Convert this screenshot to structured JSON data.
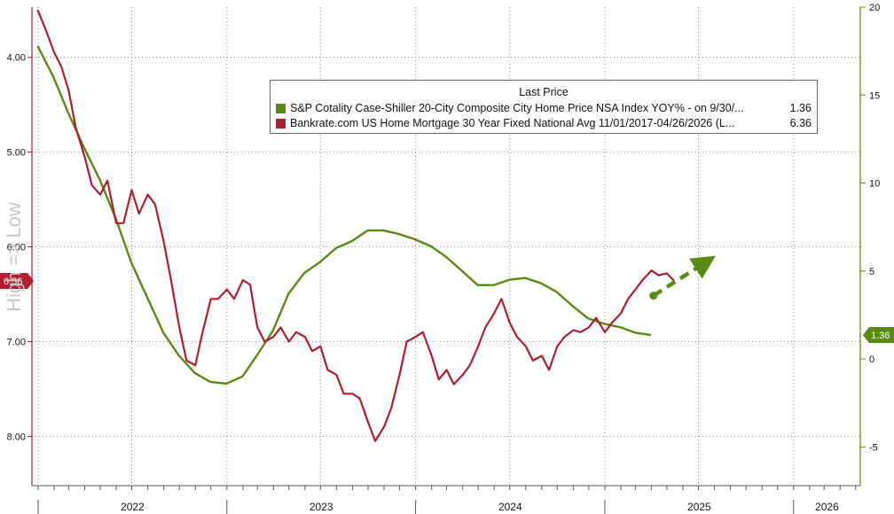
{
  "chart_data": {
    "type": "line",
    "legend": {
      "title": "Last Price",
      "position": "top-center",
      "entries": [
        {
          "label": "S&P Cotality Case-Shiller 20-City Composite City Home Price NSA Index YOY% -  on 9/30/...",
          "value": "1.36",
          "color": "#5a8a12"
        },
        {
          "label": "Bankrate.com US Home Mortgage 30 Year Fixed National Avg 11/01/2017-04/26/2026   (L...",
          "value": "6.36",
          "color": "#b01e2f"
        }
      ]
    },
    "x_axis": {
      "type": "date",
      "range": [
        "2021-12-20",
        "2026-05-10"
      ],
      "tick_labels": [
        "2022",
        "2023",
        "2024",
        "2025",
        "2026"
      ]
    },
    "left_axis": {
      "inverted": true,
      "range": [
        3.47,
        8.52
      ],
      "ticks": [
        "4.00",
        "5.00",
        "6.00",
        "7.00",
        "8.00"
      ],
      "label": "High => Low",
      "current_value_label": "6.36"
    },
    "right_axis": {
      "range": [
        -7.2,
        20
      ],
      "ticks": [
        "20",
        "15",
        "10",
        "5",
        "0",
        "-5"
      ],
      "current_value_label": "1.36"
    },
    "grid": true,
    "series": [
      {
        "name": "S&P Cotality Case-Shiller 20-City Composite City Home Price NSA Index YOY%",
        "axis": "right",
        "color": "#5a8a12",
        "points": [
          [
            "2021-12-31",
            17.8
          ],
          [
            "2022-01-31",
            16.0
          ],
          [
            "2022-02-28",
            14.0
          ],
          [
            "2022-03-31",
            12.0
          ],
          [
            "2022-04-30",
            10.2
          ],
          [
            "2022-05-31",
            8.0
          ],
          [
            "2022-06-30",
            5.5
          ],
          [
            "2022-07-31",
            3.5
          ],
          [
            "2022-08-31",
            1.5
          ],
          [
            "2022-09-30",
            0.2
          ],
          [
            "2022-10-31",
            -0.8
          ],
          [
            "2022-11-30",
            -1.3
          ],
          [
            "2022-12-31",
            -1.4
          ],
          [
            "2023-01-31",
            -1.0
          ],
          [
            "2023-02-28",
            0.2
          ],
          [
            "2023-03-31",
            1.6
          ],
          [
            "2023-04-30",
            3.7
          ],
          [
            "2023-05-31",
            4.9
          ],
          [
            "2023-06-30",
            5.5
          ],
          [
            "2023-07-31",
            6.3
          ],
          [
            "2023-08-31",
            6.7
          ],
          [
            "2023-09-30",
            7.3
          ],
          [
            "2023-10-31",
            7.3
          ],
          [
            "2023-11-30",
            7.1
          ],
          [
            "2023-12-31",
            6.8
          ],
          [
            "2024-01-31",
            6.4
          ],
          [
            "2024-02-29",
            5.8
          ],
          [
            "2024-03-31",
            5.0
          ],
          [
            "2024-04-30",
            4.2
          ],
          [
            "2024-05-31",
            4.2
          ],
          [
            "2024-06-30",
            4.5
          ],
          [
            "2024-07-31",
            4.6
          ],
          [
            "2024-08-31",
            4.3
          ],
          [
            "2024-09-30",
            3.8
          ],
          [
            "2024-10-31",
            3.0
          ],
          [
            "2024-11-30",
            2.3
          ],
          [
            "2024-12-31",
            2.0
          ],
          [
            "2025-01-31",
            1.8
          ],
          [
            "2025-02-28",
            1.5
          ],
          [
            "2025-03-31",
            1.36
          ]
        ]
      },
      {
        "name": "Bankrate.com US Home Mortgage 30 Year Fixed National Avg",
        "axis": "left",
        "color": "#b01e2f",
        "points": [
          [
            "2021-12-31",
            3.5
          ],
          [
            "2022-01-15",
            3.7
          ],
          [
            "2022-02-01",
            3.95
          ],
          [
            "2022-02-15",
            4.1
          ],
          [
            "2022-03-01",
            4.35
          ],
          [
            "2022-03-15",
            4.75
          ],
          [
            "2022-04-01",
            5.05
          ],
          [
            "2022-04-15",
            5.35
          ],
          [
            "2022-05-01",
            5.45
          ],
          [
            "2022-05-15",
            5.3
          ],
          [
            "2022-06-01",
            5.75
          ],
          [
            "2022-06-15",
            5.75
          ],
          [
            "2022-07-01",
            5.4
          ],
          [
            "2022-07-15",
            5.65
          ],
          [
            "2022-08-01",
            5.45
          ],
          [
            "2022-08-15",
            5.55
          ],
          [
            "2022-09-01",
            5.95
          ],
          [
            "2022-09-15",
            6.35
          ],
          [
            "2022-10-01",
            6.85
          ],
          [
            "2022-10-15",
            7.2
          ],
          [
            "2022-11-01",
            7.25
          ],
          [
            "2022-11-15",
            6.9
          ],
          [
            "2022-12-01",
            6.55
          ],
          [
            "2022-12-15",
            6.55
          ],
          [
            "2023-01-01",
            6.45
          ],
          [
            "2023-01-15",
            6.55
          ],
          [
            "2023-02-01",
            6.35
          ],
          [
            "2023-02-15",
            6.4
          ],
          [
            "2023-03-01",
            6.85
          ],
          [
            "2023-03-15",
            7.0
          ],
          [
            "2023-04-01",
            6.95
          ],
          [
            "2023-04-15",
            6.85
          ],
          [
            "2023-05-01",
            7.0
          ],
          [
            "2023-05-15",
            6.9
          ],
          [
            "2023-06-01",
            6.95
          ],
          [
            "2023-06-15",
            7.1
          ],
          [
            "2023-07-01",
            7.05
          ],
          [
            "2023-07-15",
            7.3
          ],
          [
            "2023-08-01",
            7.35
          ],
          [
            "2023-08-15",
            7.55
          ],
          [
            "2023-09-01",
            7.55
          ],
          [
            "2023-09-15",
            7.6
          ],
          [
            "2023-10-01",
            7.85
          ],
          [
            "2023-10-15",
            8.05
          ],
          [
            "2023-11-01",
            7.9
          ],
          [
            "2023-11-15",
            7.7
          ],
          [
            "2023-12-01",
            7.35
          ],
          [
            "2023-12-15",
            7.0
          ],
          [
            "2024-01-01",
            6.95
          ],
          [
            "2024-01-15",
            6.9
          ],
          [
            "2024-02-01",
            7.15
          ],
          [
            "2024-02-15",
            7.4
          ],
          [
            "2024-03-01",
            7.3
          ],
          [
            "2024-03-15",
            7.45
          ],
          [
            "2024-04-01",
            7.35
          ],
          [
            "2024-04-15",
            7.25
          ],
          [
            "2024-05-01",
            7.05
          ],
          [
            "2024-05-15",
            6.85
          ],
          [
            "2024-06-01",
            6.7
          ],
          [
            "2024-06-15",
            6.55
          ],
          [
            "2024-07-01",
            6.8
          ],
          [
            "2024-07-15",
            6.95
          ],
          [
            "2024-08-01",
            7.05
          ],
          [
            "2024-08-15",
            7.2
          ],
          [
            "2024-09-01",
            7.15
          ],
          [
            "2024-09-15",
            7.3
          ],
          [
            "2024-10-01",
            7.05
          ],
          [
            "2024-10-15",
            6.95
          ],
          [
            "2024-11-01",
            6.88
          ],
          [
            "2024-11-15",
            6.9
          ],
          [
            "2024-12-01",
            6.85
          ],
          [
            "2024-12-15",
            6.75
          ],
          [
            "2025-01-01",
            6.9
          ],
          [
            "2025-01-15",
            6.8
          ],
          [
            "2025-02-01",
            6.7
          ],
          [
            "2025-02-15",
            6.55
          ],
          [
            "2025-03-01",
            6.45
          ],
          [
            "2025-03-15",
            6.35
          ],
          [
            "2025-04-01",
            6.25
          ],
          [
            "2025-04-15",
            6.3
          ],
          [
            "2025-05-01",
            6.28
          ],
          [
            "2025-05-15",
            6.36
          ]
        ]
      }
    ],
    "annotations": [
      {
        "type": "dashed-arrow",
        "color": "#5a8a12",
        "from": [
          "2025-04-05",
          3.6
        ],
        "to": [
          "2025-07-15",
          5.5
        ]
      }
    ]
  }
}
